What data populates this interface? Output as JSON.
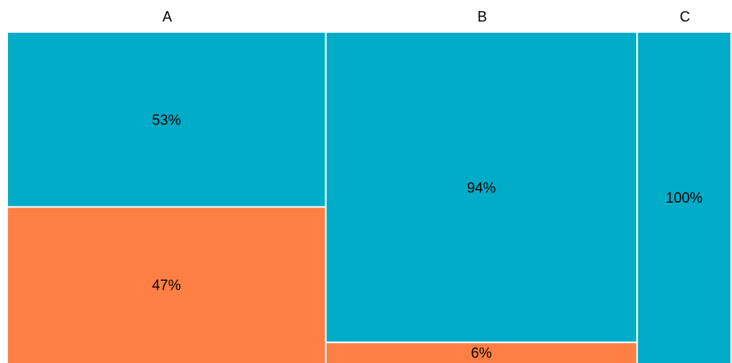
{
  "chart_data": {
    "type": "mosaic",
    "categories": [
      "A",
      "B",
      "C"
    ],
    "column_weights": [
      0.44,
      0.43,
      0.13
    ],
    "series_colors": [
      "#00acc8",
      "#ff7f45"
    ],
    "segments": [
      [
        {
          "series": 0,
          "value": 0.53,
          "label": "53%"
        },
        {
          "series": 1,
          "value": 0.47,
          "label": "47%"
        }
      ],
      [
        {
          "series": 0,
          "value": 0.94,
          "label": "94%"
        },
        {
          "series": 1,
          "value": 0.06,
          "label": "6%"
        }
      ],
      [
        {
          "series": 0,
          "value": 1.0,
          "label": "100%"
        }
      ]
    ],
    "legend": "none",
    "grid": false
  }
}
